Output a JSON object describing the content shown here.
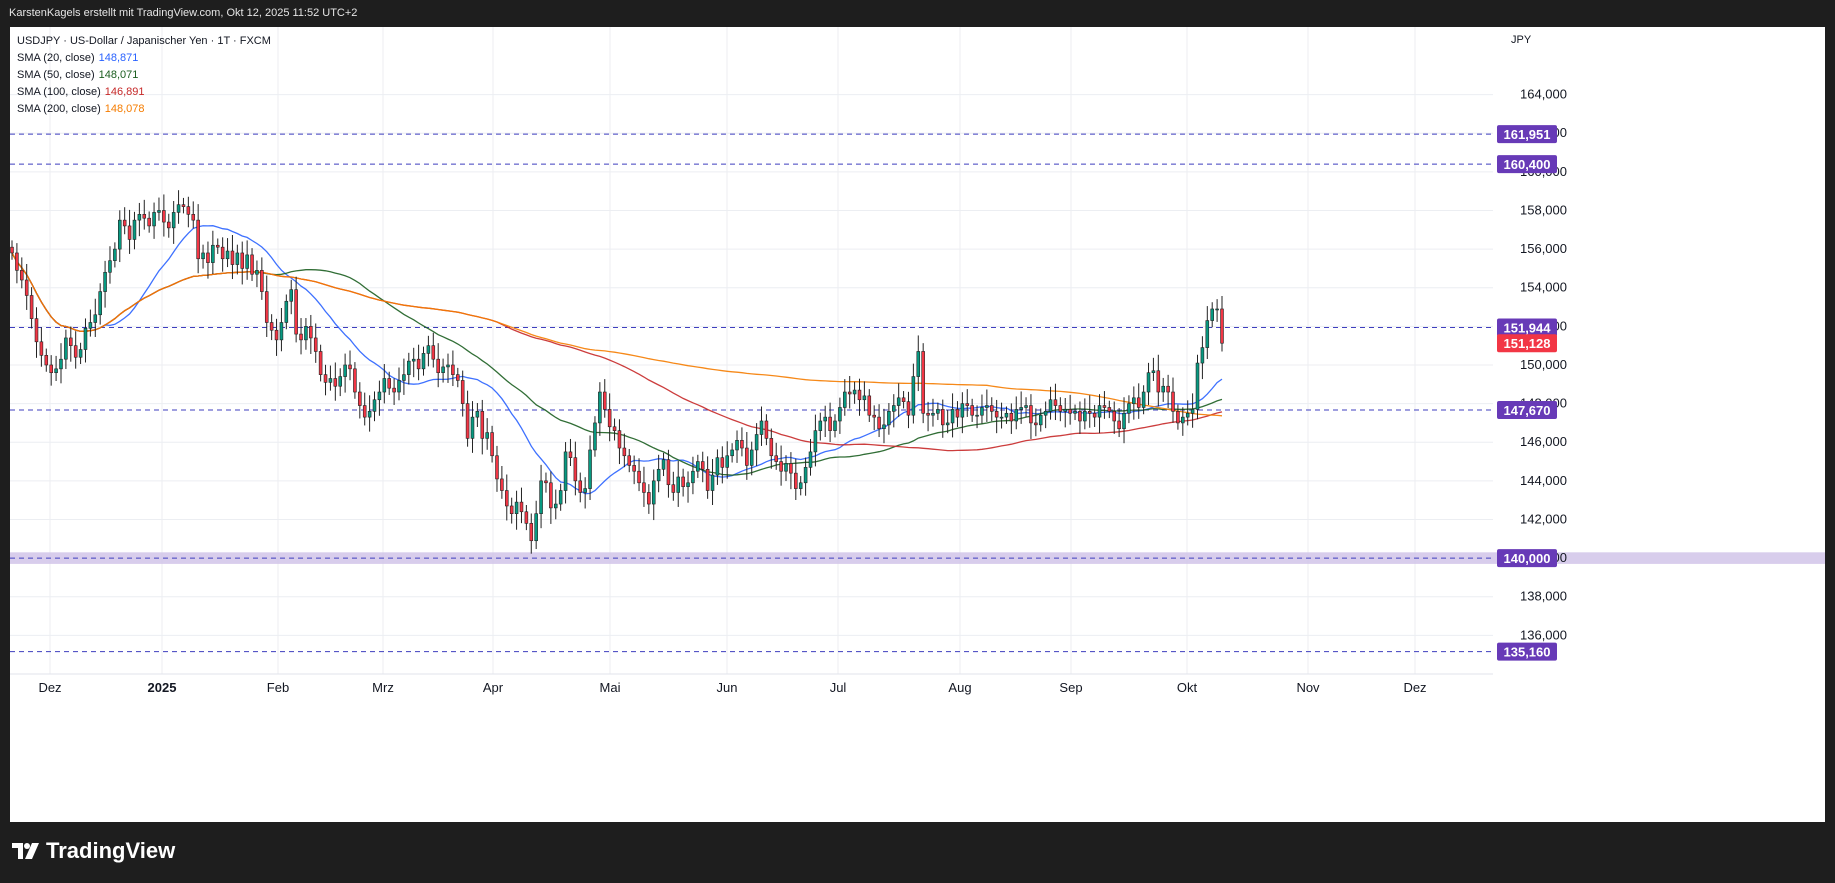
{
  "header": {
    "published_by": "KarstenKagels erstellt mit TradingView.com, Okt 12, 2025 11:52 UTC+2"
  },
  "legend": {
    "symbol_line": "USDJPY · US-Dollar / Japanischer Yen · 1T · FXCM",
    "indicators": [
      {
        "label": "SMA (20, close)",
        "value": "148,871",
        "color": "#2962ff"
      },
      {
        "label": "SMA (50, close)",
        "value": "148,071",
        "color": "#1b5e20"
      },
      {
        "label": "SMA (100, close)",
        "value": "146,891",
        "color": "#c62828"
      },
      {
        "label": "SMA (200, close)",
        "value": "148,078",
        "color": "#f57c00"
      }
    ]
  },
  "currency_label": "JPY",
  "brand": "TradingView",
  "chart_data": {
    "type": "candlestick",
    "symbol": "USDJPY",
    "x_months": [
      "Dez",
      "2025",
      "Feb",
      "Mrz",
      "Apr",
      "Mai",
      "Jun",
      "Jul",
      "Aug",
      "Sep",
      "Okt",
      "Nov",
      "Dez"
    ],
    "y_ticks": [
      "164,000",
      "162,000",
      "160,000",
      "158,000",
      "156,000",
      "154,000",
      "152,000",
      "150,000",
      "148,000",
      "146,000",
      "144,000",
      "142,000",
      "140,000",
      "138,000",
      "136,000"
    ],
    "ylim": [
      134.0,
      167.5
    ],
    "horizontal_levels": [
      {
        "value": 161.951,
        "label": "161,951",
        "color": "#673ab7"
      },
      {
        "value": 160.4,
        "label": "160,400",
        "color": "#673ab7"
      },
      {
        "value": 151.944,
        "label": "151,944",
        "color": "#673ab7"
      },
      {
        "value": 147.67,
        "label": "147,670",
        "color": "#673ab7"
      },
      {
        "value": 140.0,
        "label": "140,000",
        "color": "#673ab7"
      },
      {
        "value": 135.16,
        "label": "135,160",
        "color": "#673ab7"
      }
    ],
    "support_zone": [
      139.7,
      140.3
    ],
    "last_price": {
      "value": 151.128,
      "label": "151,128",
      "color": "#f23645"
    },
    "close_series": [
      155.8,
      154.9,
      154.4,
      153.6,
      152.4,
      151.2,
      150.5,
      150.0,
      149.6,
      149.8,
      150.3,
      151.4,
      151.0,
      150.4,
      150.8,
      151.9,
      152.2,
      152.6,
      153.8,
      154.8,
      155.4,
      156.0,
      157.5,
      157.2,
      156.5,
      157.5,
      157.8,
      157.6,
      157.2,
      157.9,
      158.0,
      157.4,
      157.1,
      157.9,
      158.3,
      158.2,
      157.8,
      157.5,
      155.5,
      155.8,
      155.3,
      156.2,
      156.1,
      155.5,
      155.9,
      155.2,
      155.8,
      155.0,
      155.7,
      154.7,
      154.9,
      153.8,
      152.2,
      151.8,
      151.3,
      152.2,
      153.3,
      153.9,
      151.6,
      151.3,
      152.0,
      151.4,
      150.7,
      149.5,
      149.1,
      149.3,
      148.9,
      149.4,
      150.0,
      149.8,
      148.6,
      147.9,
      147.3,
      147.6,
      148.2,
      148.6,
      149.3,
      148.8,
      148.6,
      149.2,
      149.5,
      150.2,
      150.3,
      149.8,
      150.6,
      151.0,
      150.3,
      149.6,
      149.9,
      150.0,
      149.5,
      149.2,
      148.0,
      146.2,
      147.3,
      147.6,
      146.2,
      146.5,
      145.3,
      144.1,
      143.5,
      142.7,
      142.3,
      142.9,
      142.4,
      141.8,
      140.9,
      142.3,
      144.0,
      143.9,
      142.6,
      142.8,
      143.5,
      145.5,
      145.2,
      144.0,
      143.4,
      143.6,
      145.6,
      147.0,
      148.6,
      147.7,
      146.8,
      146.6,
      145.7,
      145.3,
      144.8,
      144.5,
      143.9,
      143.4,
      142.8,
      144.0,
      144.6,
      145.1,
      143.8,
      143.4,
      144.2,
      143.7,
      143.9,
      144.5,
      145.0,
      144.6,
      143.5,
      144.3,
      145.2,
      144.7,
      145.3,
      145.6,
      146.1,
      145.7,
      144.8,
      145.6,
      146.4,
      147.1,
      146.2,
      145.3,
      145.0,
      144.5,
      144.9,
      144.4,
      143.6,
      143.9,
      144.7,
      145.5,
      146.6,
      147.1,
      147.3,
      146.6,
      147.1,
      147.8,
      148.6,
      148.5,
      148.7,
      148.2,
      148.4,
      147.4,
      147.3,
      146.7,
      146.9,
      147.6,
      147.9,
      148.3,
      148.1,
      147.4,
      149.4,
      150.7,
      147.5,
      147.4,
      147.5,
      147.7,
      146.9,
      147.0,
      147.7,
      147.3,
      148.0,
      147.9,
      147.4,
      147.4,
      147.8,
      147.9,
      147.6,
      147.3,
      147.3,
      147.5,
      147.1,
      147.7,
      147.8,
      147.9,
      147.0,
      146.9,
      147.4,
      147.6,
      148.2,
      147.9,
      147.6,
      147.7,
      147.5,
      147.6,
      147.1,
      147.6,
      147.5,
      147.3,
      147.9,
      147.8,
      147.6,
      147.1,
      146.7,
      147.5,
      148.0,
      148.3,
      147.8,
      148.6,
      149.6,
      149.7,
      148.6,
      148.9,
      148.6,
      147.6,
      147.0,
      147.3,
      147.5,
      147.7,
      150.1,
      150.9,
      152.3,
      152.9,
      152.9,
      151.128
    ],
    "sma_20_last": 148.871,
    "sma_50_last": 148.071,
    "sma_100_last": 146.891,
    "sma_200_last": 148.078
  }
}
